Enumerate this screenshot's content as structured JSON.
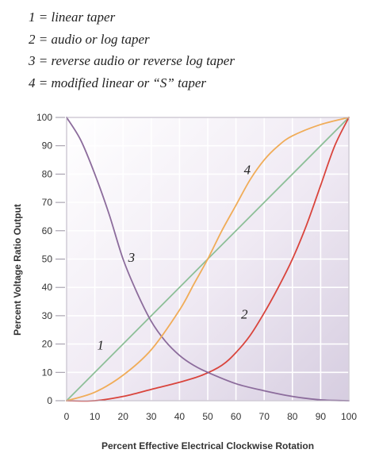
{
  "legend_key": [
    "1 = linear taper",
    "2 = audio or log taper",
    "3 = reverse audio or reverse log taper",
    "4 = modified linear or “S” taper"
  ],
  "chart_data": {
    "type": "line",
    "title": "",
    "xlabel": "Percent Effective Electrical Clockwise Rotation",
    "ylabel": "Percent Voltage Ratio Output",
    "xlim": [
      0,
      100
    ],
    "ylim": [
      0,
      100
    ],
    "x_ticks": [
      "0",
      "10",
      "20",
      "30",
      "40",
      "50",
      "60",
      "70",
      "80",
      "90",
      "100"
    ],
    "y_ticks": [
      "0",
      "10",
      "20",
      "30",
      "40",
      "50",
      "60",
      "70",
      "80",
      "90",
      "100"
    ],
    "grid": true,
    "series": [
      {
        "name": "1",
        "color": "#8dbf98",
        "points": [
          [
            0,
            0
          ],
          [
            100,
            100
          ]
        ]
      },
      {
        "name": "2",
        "color": "#d9443c",
        "points": [
          [
            0,
            0
          ],
          [
            10,
            0
          ],
          [
            20,
            1.5
          ],
          [
            30,
            4
          ],
          [
            40,
            6.5
          ],
          [
            48,
            9
          ],
          [
            55,
            12.5
          ],
          [
            60,
            17
          ],
          [
            65,
            23
          ],
          [
            70,
            31
          ],
          [
            75,
            40
          ],
          [
            80,
            50
          ],
          [
            85,
            62
          ],
          [
            90,
            76
          ],
          [
            95,
            90
          ],
          [
            100,
            100
          ]
        ]
      },
      {
        "name": "3",
        "color": "#8c6c9c",
        "points": [
          [
            0,
            100
          ],
          [
            5,
            92
          ],
          [
            10,
            80
          ],
          [
            15,
            66
          ],
          [
            20,
            50
          ],
          [
            25,
            38
          ],
          [
            30,
            28
          ],
          [
            35,
            21
          ],
          [
            40,
            16
          ],
          [
            45,
            12.5
          ],
          [
            50,
            10
          ],
          [
            60,
            6
          ],
          [
            70,
            3.5
          ],
          [
            80,
            1.5
          ],
          [
            90,
            0.3
          ],
          [
            100,
            0
          ]
        ]
      },
      {
        "name": "4",
        "color": "#f0ac58",
        "points": [
          [
            0,
            0
          ],
          [
            10,
            3
          ],
          [
            20,
            9
          ],
          [
            30,
            18
          ],
          [
            40,
            32
          ],
          [
            45,
            41
          ],
          [
            50,
            50
          ],
          [
            55,
            60
          ],
          [
            60,
            69
          ],
          [
            65,
            78
          ],
          [
            70,
            85
          ],
          [
            75,
            90
          ],
          [
            80,
            93.5
          ],
          [
            90,
            97.5
          ],
          [
            100,
            100
          ]
        ]
      }
    ],
    "curve_labels": [
      {
        "text": "1",
        "x": 12,
        "y": 18
      },
      {
        "text": "2",
        "x": 63,
        "y": 29
      },
      {
        "text": "3",
        "x": 23,
        "y": 49
      },
      {
        "text": "4",
        "x": 64,
        "y": 80
      }
    ]
  }
}
